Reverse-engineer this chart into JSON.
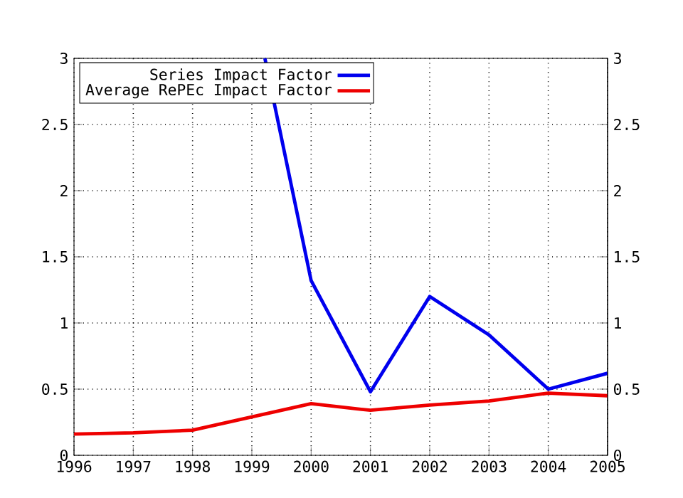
{
  "chart_data": {
    "type": "line",
    "x": [
      1996,
      1997,
      1998,
      1999,
      2000,
      2001,
      2002,
      2003,
      2004,
      2005
    ],
    "series": [
      {
        "name": "Series Impact Factor",
        "color": "#0000ee",
        "x": [
          1999.22,
          2000,
          2001,
          2002,
          2003,
          2004,
          2005
        ],
        "values": [
          3,
          1.32,
          0.48,
          1.2,
          0.91,
          0.5,
          0.62
        ]
      },
      {
        "name": "Average RePEc Impact Factor",
        "color": "#ee0000",
        "values": [
          0.16,
          0.17,
          0.19,
          0.29,
          0.39,
          0.34,
          0.38,
          0.41,
          0.47,
          0.45
        ]
      }
    ],
    "xlim": [
      1996,
      2005
    ],
    "xticks": [
      1996,
      1997,
      1998,
      1999,
      2000,
      2001,
      2002,
      2003,
      2004,
      2005
    ],
    "ylim": [
      0,
      3
    ],
    "yticks": [
      0,
      0.5,
      1,
      1.5,
      2,
      2.5,
      3
    ],
    "y2lim": [
      0,
      3
    ],
    "y2ticks": [
      0,
      0.5,
      1,
      1.5,
      2,
      2.5,
      3
    ],
    "grid": true,
    "legend": "top left",
    "marker": "none",
    "line_style": "solid"
  }
}
